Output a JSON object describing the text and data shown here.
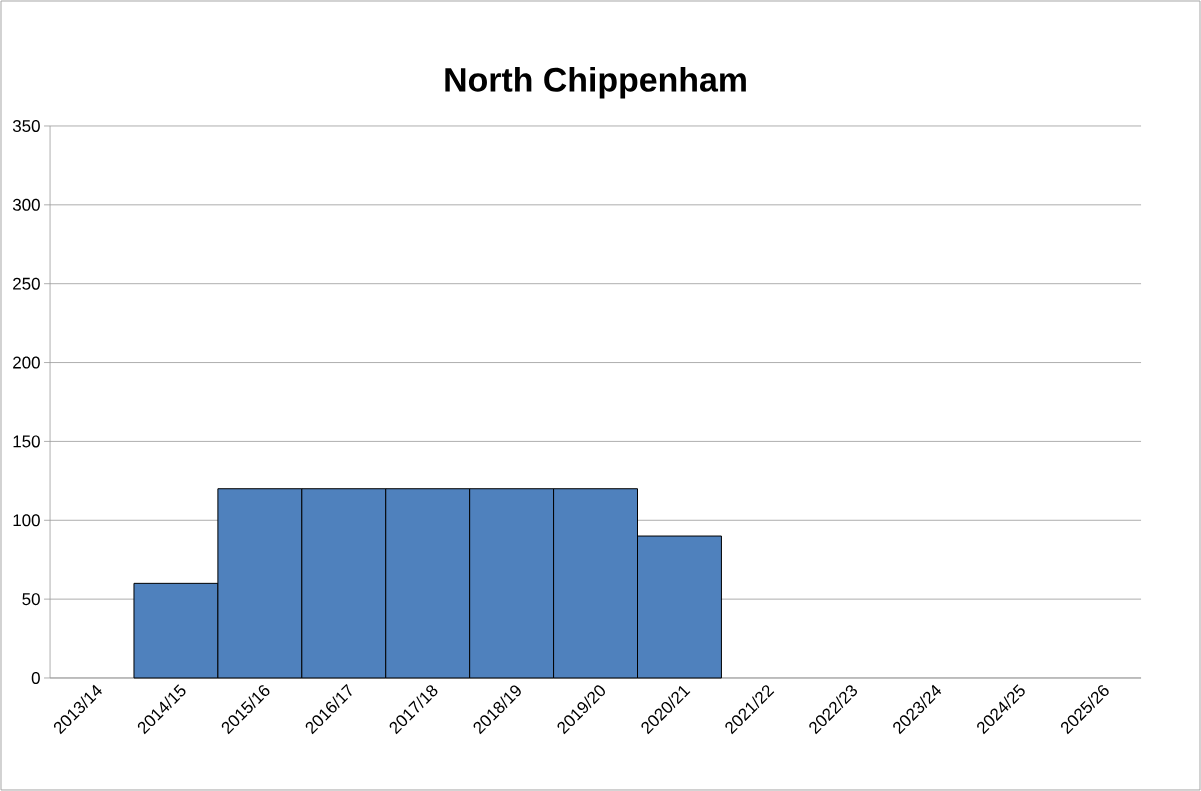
{
  "chart_data": {
    "type": "bar",
    "title": "North Chippenham",
    "categories": [
      "2013/14",
      "2014/15",
      "2015/16",
      "2016/17",
      "2017/18",
      "2018/19",
      "2019/20",
      "2020/21",
      "2021/22",
      "2022/23",
      "2023/24",
      "2024/25",
      "2025/26"
    ],
    "values": [
      null,
      60,
      120,
      120,
      120,
      120,
      120,
      90,
      null,
      null,
      null,
      null,
      null
    ],
    "color": "#4f81bd",
    "ylim": [
      0,
      350
    ],
    "yticks": [
      0,
      50,
      100,
      150,
      200,
      250,
      300,
      350
    ],
    "grid": "y"
  }
}
